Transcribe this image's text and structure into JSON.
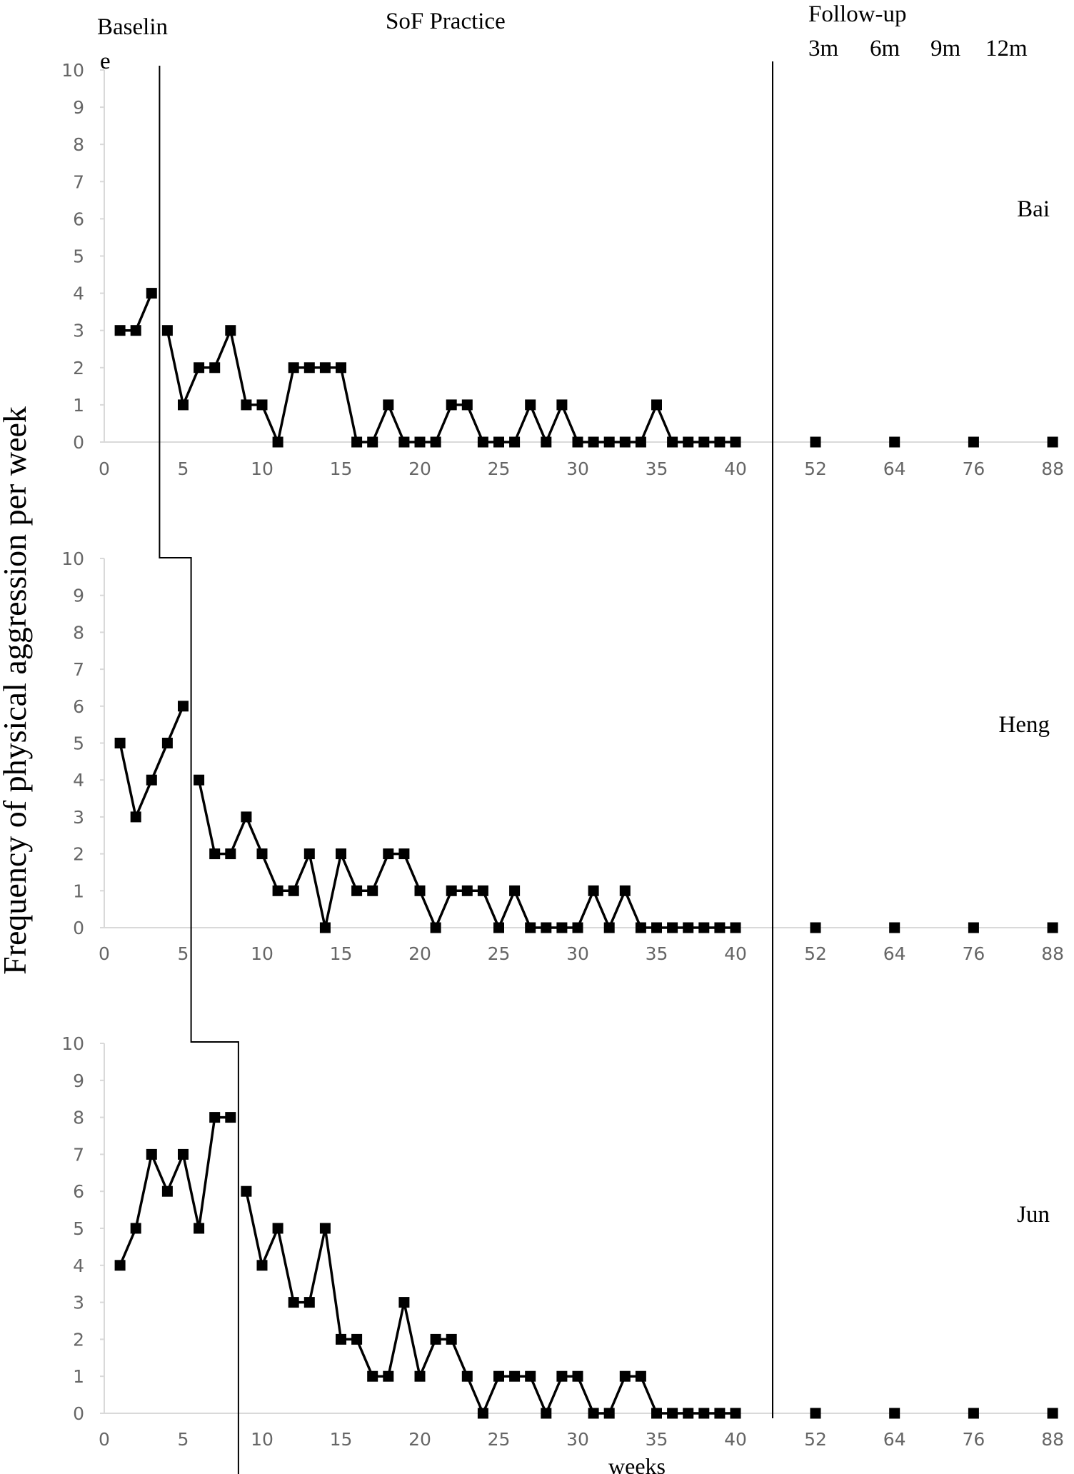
{
  "chart_data": {
    "type": "line",
    "ylabel": "Frequency of physical aggression per week",
    "xlabel": "weeks",
    "phases": {
      "baseline": "Baselin",
      "baseline_wrap": "e",
      "practice": "SoF Practice",
      "followup": "Follow-up",
      "followup_months": [
        "3m",
        "6m",
        "9m",
        "12m"
      ]
    },
    "ylim": [
      0,
      10
    ],
    "yticks": [
      "0",
      "1",
      "2",
      "3",
      "4",
      "5",
      "6",
      "7",
      "8",
      "9",
      "10"
    ],
    "xticks": [
      "0",
      "5",
      "10",
      "15",
      "20",
      "25",
      "30",
      "35",
      "40",
      "52",
      "64",
      "76",
      "88"
    ],
    "grid": false,
    "series": [
      {
        "name": "Bai",
        "baseline_end": 3.5,
        "baseline": [
          [
            1,
            3
          ],
          [
            2,
            3
          ],
          [
            3,
            4
          ]
        ],
        "treatment": [
          [
            4,
            3
          ],
          [
            5,
            1
          ],
          [
            6,
            2
          ],
          [
            7,
            2
          ],
          [
            8,
            3
          ],
          [
            9,
            1
          ],
          [
            10,
            1
          ],
          [
            11,
            0
          ],
          [
            12,
            2
          ],
          [
            13,
            2
          ],
          [
            14,
            2
          ],
          [
            15,
            2
          ],
          [
            16,
            0
          ],
          [
            17,
            0
          ],
          [
            18,
            1
          ],
          [
            19,
            0
          ],
          [
            20,
            0
          ],
          [
            21,
            0
          ],
          [
            22,
            1
          ],
          [
            23,
            1
          ],
          [
            24,
            0
          ],
          [
            25,
            0
          ],
          [
            26,
            0
          ],
          [
            27,
            1
          ],
          [
            28,
            0
          ],
          [
            29,
            1
          ],
          [
            30,
            0
          ],
          [
            31,
            0
          ],
          [
            32,
            0
          ],
          [
            33,
            0
          ],
          [
            34,
            0
          ],
          [
            35,
            1
          ],
          [
            36,
            0
          ],
          [
            37,
            0
          ],
          [
            38,
            0
          ],
          [
            39,
            0
          ],
          [
            40,
            0
          ]
        ],
        "followup": [
          [
            52,
            0
          ],
          [
            64,
            0
          ],
          [
            76,
            0
          ],
          [
            88,
            0
          ]
        ]
      },
      {
        "name": "Heng",
        "baseline_end": 5.5,
        "baseline": [
          [
            1,
            5
          ],
          [
            2,
            3
          ],
          [
            3,
            4
          ],
          [
            4,
            5
          ],
          [
            5,
            6
          ]
        ],
        "treatment": [
          [
            6,
            4
          ],
          [
            7,
            2
          ],
          [
            8,
            2
          ],
          [
            9,
            3
          ],
          [
            10,
            2
          ],
          [
            11,
            1
          ],
          [
            12,
            1
          ],
          [
            13,
            2
          ],
          [
            14,
            0
          ],
          [
            15,
            2
          ],
          [
            16,
            1
          ],
          [
            17,
            1
          ],
          [
            18,
            2
          ],
          [
            19,
            2
          ],
          [
            20,
            1
          ],
          [
            21,
            0
          ],
          [
            22,
            1
          ],
          [
            23,
            1
          ],
          [
            24,
            1
          ],
          [
            25,
            0
          ],
          [
            26,
            1
          ],
          [
            27,
            0
          ],
          [
            28,
            0
          ],
          [
            29,
            0
          ],
          [
            30,
            0
          ],
          [
            31,
            1
          ],
          [
            32,
            0
          ],
          [
            33,
            1
          ],
          [
            34,
            0
          ],
          [
            35,
            0
          ],
          [
            36,
            0
          ],
          [
            37,
            0
          ],
          [
            38,
            0
          ],
          [
            39,
            0
          ],
          [
            40,
            0
          ]
        ],
        "followup": [
          [
            52,
            0
          ],
          [
            64,
            0
          ],
          [
            76,
            0
          ],
          [
            88,
            0
          ]
        ]
      },
      {
        "name": "Jun",
        "baseline_end": 8.5,
        "baseline": [
          [
            1,
            4
          ],
          [
            2,
            5
          ],
          [
            3,
            7
          ],
          [
            4,
            6
          ],
          [
            5,
            7
          ],
          [
            6,
            5
          ],
          [
            7,
            8
          ],
          [
            8,
            8
          ]
        ],
        "treatment": [
          [
            9,
            6
          ],
          [
            10,
            4
          ],
          [
            11,
            5
          ],
          [
            12,
            3
          ],
          [
            13,
            3
          ],
          [
            14,
            5
          ],
          [
            15,
            2
          ],
          [
            16,
            2
          ],
          [
            17,
            1
          ],
          [
            18,
            1
          ],
          [
            19,
            3
          ],
          [
            20,
            1
          ],
          [
            21,
            2
          ],
          [
            22,
            2
          ],
          [
            23,
            1
          ],
          [
            24,
            0
          ],
          [
            25,
            1
          ],
          [
            26,
            1
          ],
          [
            27,
            1
          ],
          [
            28,
            0
          ],
          [
            29,
            1
          ],
          [
            30,
            1
          ],
          [
            31,
            0
          ],
          [
            32,
            0
          ],
          [
            33,
            1
          ],
          [
            34,
            1
          ],
          [
            35,
            0
          ],
          [
            36,
            0
          ],
          [
            37,
            0
          ],
          [
            38,
            0
          ],
          [
            39,
            0
          ],
          [
            40,
            0
          ]
        ],
        "followup": [
          [
            52,
            0
          ],
          [
            64,
            0
          ],
          [
            76,
            0
          ],
          [
            88,
            0
          ]
        ]
      }
    ]
  }
}
